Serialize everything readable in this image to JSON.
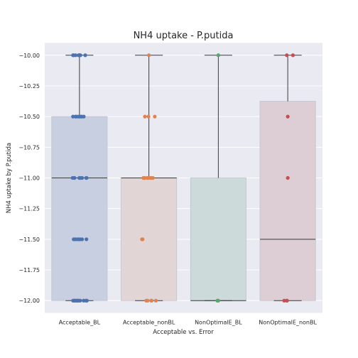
{
  "chart_data": {
    "type": "box",
    "title": "NH4 uptake - P.putida",
    "xlabel": "Acceptable vs. Error",
    "ylabel": "NH4 uptake by P.putida",
    "ylim": [
      -12.1,
      -9.9
    ],
    "yticks": [
      -10.0,
      -10.25,
      -10.5,
      -10.75,
      -11.0,
      -11.25,
      -11.5,
      -11.75,
      -12.0
    ],
    "ytick_labels": [
      "−10.00",
      "−10.25",
      "−10.50",
      "−10.75",
      "−11.00",
      "−11.25",
      "−11.50",
      "−11.75",
      "−12.00"
    ],
    "grid": true,
    "background": "#eaeaf2",
    "categories": [
      "Acceptable_BL",
      "Acceptable_nonBL",
      "NonOptimalE_BL",
      "NonOptimalE_nonBL"
    ],
    "boxes": [
      {
        "q1": -12.0,
        "median": -11.0,
        "q3": -10.5,
        "whisker_low": -12.0,
        "whisker_high": -10.0,
        "box_color": "#c8cfe1",
        "point_color": "#4c72b0"
      },
      {
        "q1": -12.0,
        "median": -11.0,
        "q3": -11.0,
        "whisker_low": -12.0,
        "whisker_high": -10.0,
        "box_color": "#e2d5d6",
        "point_color": "#dd8452"
      },
      {
        "q1": -12.0,
        "median": -12.0,
        "q3": -11.0,
        "whisker_low": -12.0,
        "whisker_high": -10.0,
        "box_color": "#ccdad9",
        "point_color": "#55a868"
      },
      {
        "q1": -12.0,
        "median": -11.5,
        "q3": -10.375,
        "whisker_low": -12.0,
        "whisker_high": -10.0,
        "box_color": "#ddcdd4",
        "point_color": "#c44e52"
      }
    ],
    "points": [
      {
        "category": 0,
        "y": -10.0,
        "count": 8
      },
      {
        "category": 0,
        "y": -10.5,
        "count": 8
      },
      {
        "category": 0,
        "y": -11.0,
        "count": 8
      },
      {
        "category": 0,
        "y": -11.5,
        "count": 8
      },
      {
        "category": 0,
        "y": -12.0,
        "count": 12
      },
      {
        "category": 1,
        "y": -10.0,
        "count": 1
      },
      {
        "category": 1,
        "y": -10.5,
        "count": 3
      },
      {
        "category": 1,
        "y": -11.0,
        "count": 8
      },
      {
        "category": 1,
        "y": -11.5,
        "count": 2
      },
      {
        "category": 1,
        "y": -12.0,
        "count": 5
      },
      {
        "category": 2,
        "y": -10.0,
        "count": 1
      },
      {
        "category": 2,
        "y": -12.0,
        "count": 2
      },
      {
        "category": 3,
        "y": -10.0,
        "count": 2
      },
      {
        "category": 3,
        "y": -10.5,
        "count": 1
      },
      {
        "category": 3,
        "y": -11.0,
        "count": 1
      },
      {
        "category": 3,
        "y": -12.0,
        "count": 3
      }
    ]
  }
}
